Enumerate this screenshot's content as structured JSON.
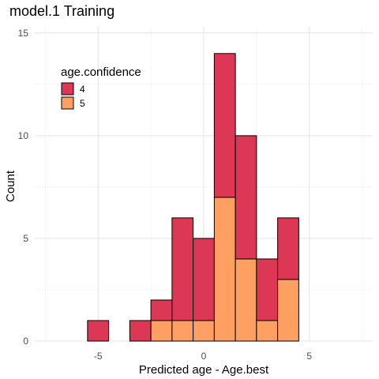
{
  "chart_data": {
    "type": "bar",
    "subtype": "stacked-histogram",
    "title": "model.1 Training",
    "xlabel": "Predicted age - Age.best",
    "ylabel": "Count",
    "bin_width": 1,
    "bins": [
      -7,
      -6,
      -5,
      -4,
      -3,
      -2,
      -1,
      0,
      1,
      2,
      3,
      4,
      5,
      6,
      7
    ],
    "series": [
      {
        "name": "4",
        "color": "#DC3755",
        "values": [
          0,
          0,
          1,
          0,
          1,
          1,
          5,
          4,
          7,
          6,
          3,
          3,
          0,
          0,
          0
        ]
      },
      {
        "name": "5",
        "color": "#FFA062",
        "values": [
          0,
          0,
          0,
          0,
          0,
          1,
          1,
          1,
          7,
          4,
          1,
          3,
          0,
          0,
          0
        ]
      }
    ],
    "xticks": [
      -5,
      0,
      5
    ],
    "yticks": [
      0,
      5,
      10,
      15
    ],
    "xlim": [
      -8,
      8
    ],
    "ylim": [
      0,
      15.3
    ],
    "legend": {
      "title": "age.confidence",
      "position": "top-left"
    },
    "grid": true,
    "bar_edge_color": "#000000"
  }
}
